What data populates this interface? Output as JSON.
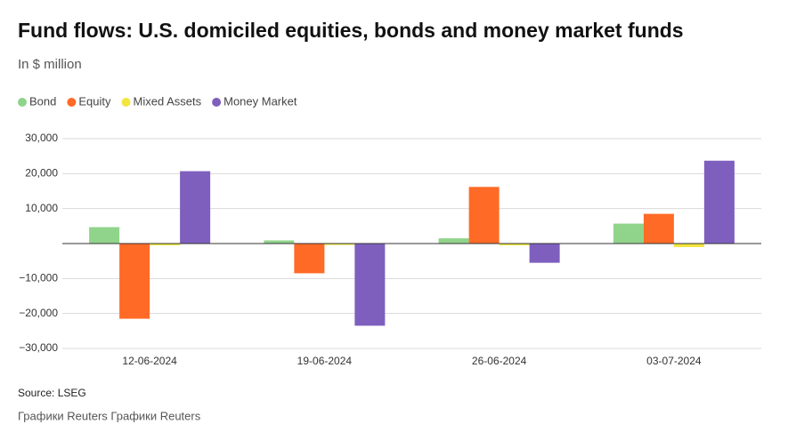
{
  "chart_data": {
    "type": "bar",
    "title": "Fund flows: U.S. domiciled equities, bonds and money market funds",
    "subtitle": "In $ million",
    "categories": [
      "12-06-2024",
      "19-06-2024",
      "26-06-2024",
      "03-07-2024"
    ],
    "series": [
      {
        "name": "Bond",
        "color": "#90d48b",
        "values": [
          4700,
          900,
          1500,
          5700
        ]
      },
      {
        "name": "Equity",
        "color": "#ff6a26",
        "values": [
          -21500,
          -8500,
          16200,
          8500
        ]
      },
      {
        "name": "Mixed Assets",
        "color": "#f2e53d",
        "values": [
          -500,
          -400,
          -500,
          -1000
        ]
      },
      {
        "name": "Money Market",
        "color": "#7e5fbe",
        "values": [
          20700,
          -23500,
          -5500,
          23700
        ]
      }
    ],
    "ylim": [
      -30000,
      30000
    ],
    "yticks": [
      {
        "value": 30000,
        "label": "30,000"
      },
      {
        "value": 20000,
        "label": "20,000"
      },
      {
        "value": 10000,
        "label": "10,000"
      },
      {
        "value": -10000,
        "label": "−10,000"
      },
      {
        "value": -20000,
        "label": "−20,000"
      },
      {
        "value": -30000,
        "label": "−30,000"
      }
    ],
    "grid": true,
    "source": "Source: LSEG",
    "credit": "Графики Reuters Графики Reuters"
  }
}
